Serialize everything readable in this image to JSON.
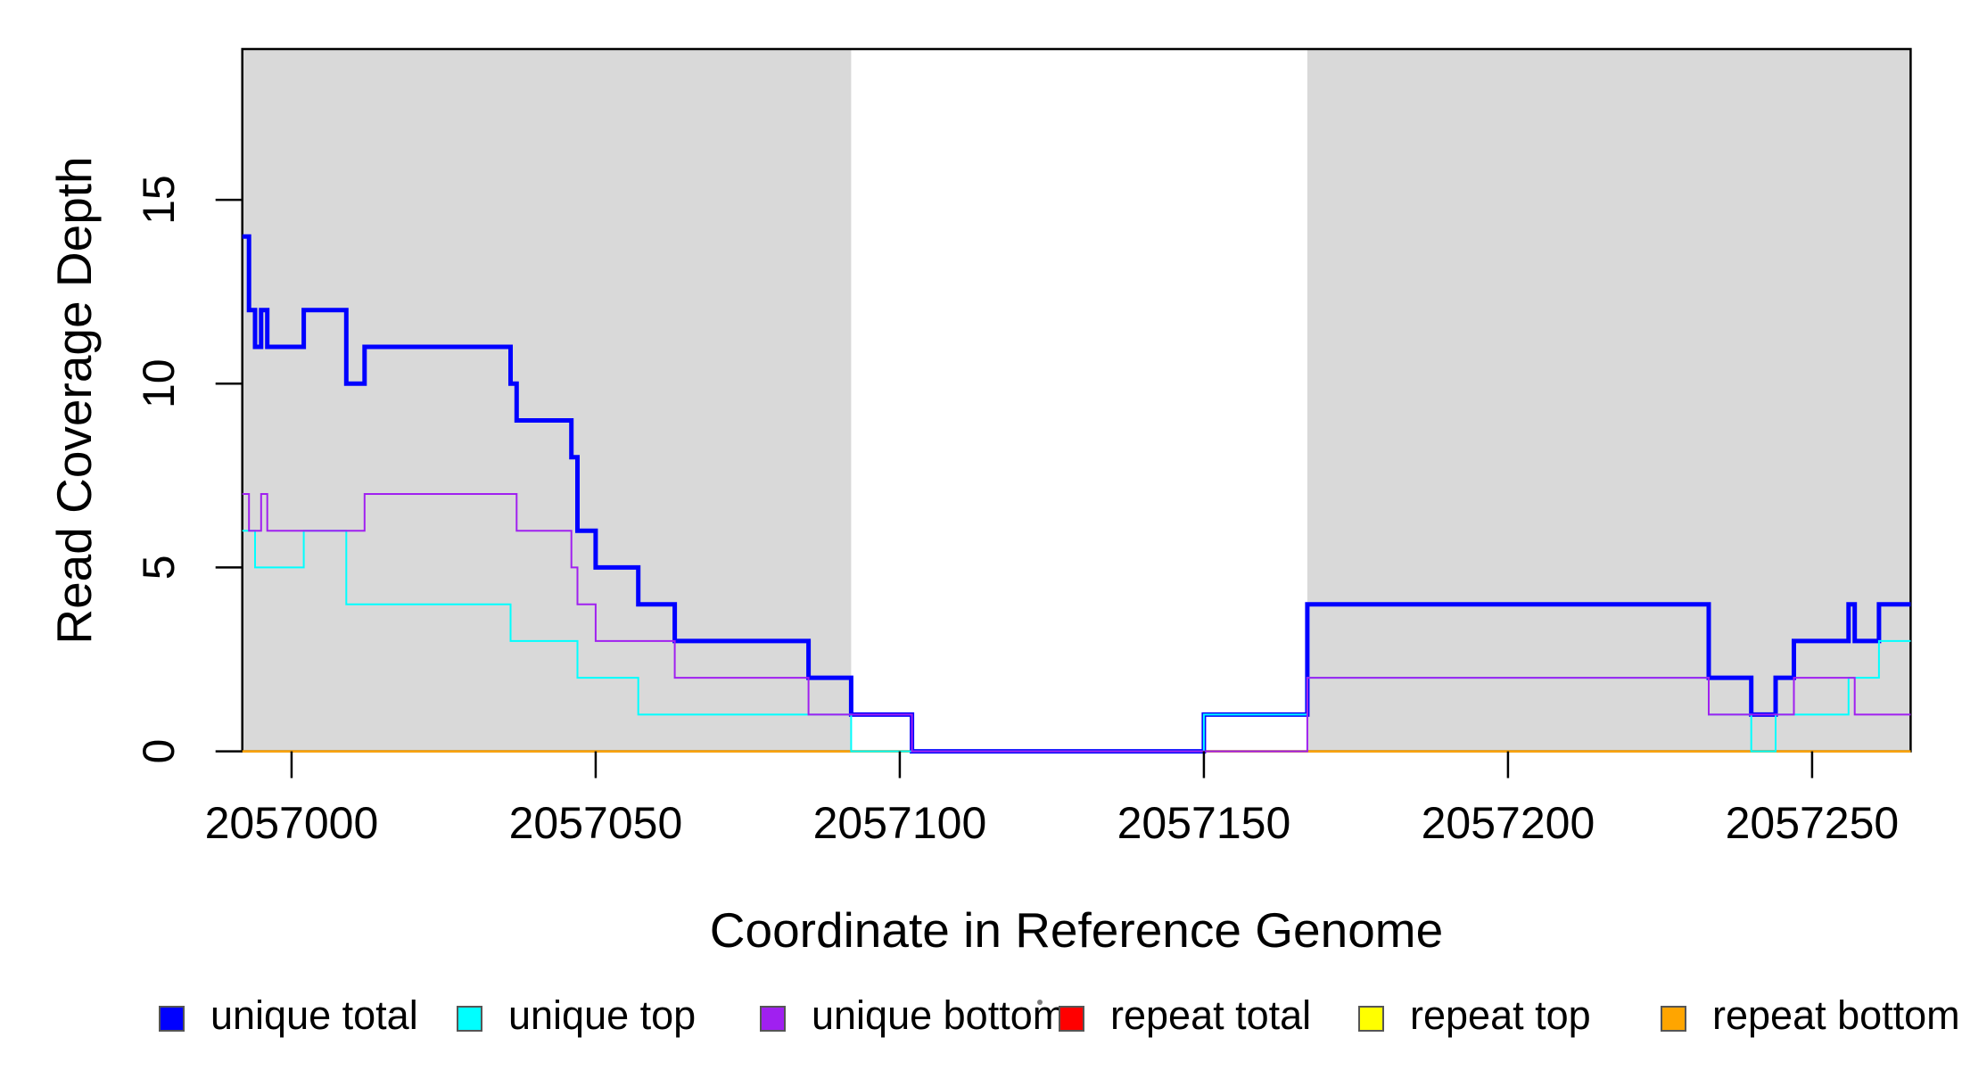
{
  "chart_data": {
    "type": "line",
    "subtype": "step",
    "title": "",
    "xlabel": "Coordinate in Reference Genome",
    "ylabel": "Read Coverage Depth",
    "x_ticks": [
      2057000,
      2057050,
      2057100,
      2057150,
      2057200,
      2057250
    ],
    "y_ticks": [
      0,
      5,
      10,
      15
    ],
    "x_range": [
      2056991.9,
      2057266.2
    ],
    "y_range": [
      0,
      19.1
    ],
    "grid": false,
    "legend_position": "bottom",
    "background_color": "#FFFFFF",
    "plot_border_color": "#000000",
    "shaded_region_color": "#D9D9D9",
    "shaded_regions": [
      {
        "name": "gray-region-left",
        "x_start": 2056991.9,
        "x_end": 2057092.0
      },
      {
        "name": "gray-region-right",
        "x_start": 2057167.0,
        "x_end": 2057266.2
      }
    ],
    "series": [
      {
        "name": "unique total",
        "color": "#0000FF",
        "line_width": 5,
        "steps": [
          [
            2056991.9,
            14
          ],
          [
            2056993,
            12
          ],
          [
            2056994,
            11
          ],
          [
            2056995,
            12
          ],
          [
            2056996,
            11
          ],
          [
            2057002,
            12
          ],
          [
            2057009,
            10
          ],
          [
            2057012,
            11
          ],
          [
            2057036,
            10
          ],
          [
            2057037,
            9
          ],
          [
            2057046,
            8
          ],
          [
            2057047,
            6
          ],
          [
            2057050,
            5
          ],
          [
            2057057,
            4
          ],
          [
            2057063,
            3
          ],
          [
            2057085,
            2
          ],
          [
            2057092,
            1
          ],
          [
            2057102,
            0
          ],
          [
            2057150,
            1
          ],
          [
            2057167,
            4
          ],
          [
            2057233,
            2
          ],
          [
            2057240,
            1
          ],
          [
            2057244,
            2
          ],
          [
            2057247,
            3
          ],
          [
            2057256,
            4
          ],
          [
            2057257,
            3
          ],
          [
            2057261,
            4
          ]
        ]
      },
      {
        "name": "unique top",
        "color": "#00FFFF",
        "line_width": 2,
        "steps": [
          [
            2056991.9,
            6
          ],
          [
            2056994,
            5
          ],
          [
            2057002,
            6
          ],
          [
            2057009,
            4
          ],
          [
            2057036,
            3
          ],
          [
            2057047,
            2
          ],
          [
            2057057,
            1
          ],
          [
            2057092,
            0
          ],
          [
            2057150,
            1
          ],
          [
            2057167,
            2
          ],
          [
            2057233,
            1
          ],
          [
            2057240,
            0
          ],
          [
            2057244,
            1
          ],
          [
            2057256,
            2
          ],
          [
            2057261,
            3
          ]
        ]
      },
      {
        "name": "unique bottom",
        "color": "#A020F0",
        "line_width": 2,
        "steps": [
          [
            2056991.9,
            7
          ],
          [
            2056993,
            6
          ],
          [
            2056995,
            7
          ],
          [
            2056996,
            6
          ],
          [
            2057012,
            7
          ],
          [
            2057037,
            6
          ],
          [
            2057046,
            5
          ],
          [
            2057047,
            4
          ],
          [
            2057050,
            3
          ],
          [
            2057063,
            2
          ],
          [
            2057085,
            1
          ],
          [
            2057102,
            0
          ],
          [
            2057167,
            2
          ],
          [
            2057233,
            1
          ],
          [
            2057247,
            2
          ],
          [
            2057257,
            1
          ]
        ]
      },
      {
        "name": "repeat total",
        "color": "#FF0000",
        "line_width": 2,
        "steps": [
          [
            2056991.9,
            0
          ]
        ]
      },
      {
        "name": "repeat top",
        "color": "#FFFF00",
        "line_width": 2,
        "steps": [
          [
            2056991.9,
            0
          ]
        ]
      },
      {
        "name": "repeat bottom",
        "color": "#FFA500",
        "line_width": 2.5,
        "steps": [
          [
            2056991.9,
            0
          ]
        ]
      }
    ],
    "draw_order": [
      "repeat total",
      "repeat top",
      "repeat bottom",
      "unique total",
      "unique top",
      "unique bottom"
    ]
  },
  "legend": {
    "swatch_border_color": "#555555",
    "items": [
      {
        "label": "unique total",
        "color": "#0000FF"
      },
      {
        "label": "unique top",
        "color": "#00FFFF"
      },
      {
        "label": "unique bottom",
        "color": "#A020F0"
      },
      {
        "label": "repeat total",
        "color": "#FF0000"
      },
      {
        "label": "repeat top",
        "color": "#FFFF00"
      },
      {
        "label": "repeat bottom",
        "color": "#FFA500"
      }
    ]
  }
}
